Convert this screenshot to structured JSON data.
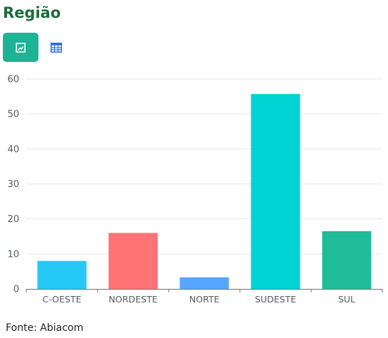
{
  "header": {
    "title": "Região"
  },
  "toolbar": {
    "chart_view_icon": "chart-view-icon",
    "table_view_icon": "table-view-icon",
    "active_color": "#1db394",
    "table_icon_color": "#2d6fe0"
  },
  "chart_data": {
    "type": "bar",
    "categories": [
      "C-OESTE",
      "NORDESTE",
      "NORTE",
      "SUDESTE",
      "SUL"
    ],
    "values": [
      8,
      16,
      3.3,
      55.7,
      16.5
    ],
    "colors": [
      "#26c9f5",
      "#ff7276",
      "#58a5ff",
      "#00d3d3",
      "#1ebc98"
    ],
    "ylim": [
      0,
      60
    ],
    "yticks": [
      0,
      10,
      20,
      30,
      40,
      50,
      60
    ],
    "grid": true,
    "legend": "none"
  },
  "footer": {
    "source": "Fonte: Abiacom"
  }
}
